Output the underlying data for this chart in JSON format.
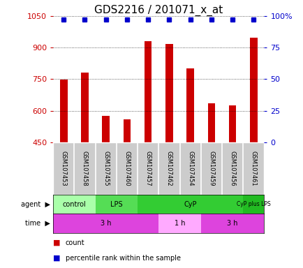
{
  "title": "GDS2216 / 201071_x_at",
  "samples": [
    "GSM107453",
    "GSM107458",
    "GSM107455",
    "GSM107460",
    "GSM107457",
    "GSM107462",
    "GSM107454",
    "GSM107459",
    "GSM107456",
    "GSM107461"
  ],
  "counts": [
    748,
    782,
    577,
    560,
    930,
    918,
    800,
    637,
    627,
    948
  ],
  "bar_color": "#cc0000",
  "dot_color": "#0000cc",
  "ymin": 450,
  "ymax": 1050,
  "yticks": [
    450,
    600,
    750,
    900,
    1050
  ],
  "y2ticks": [
    0,
    25,
    50,
    75,
    100
  ],
  "y2labels": [
    "0",
    "25",
    "50",
    "75",
    "100%"
  ],
  "agent_groups": [
    {
      "label": "control",
      "start": 0,
      "end": 2,
      "color": "#aaffaa"
    },
    {
      "label": "LPS",
      "start": 2,
      "end": 4,
      "color": "#55dd55"
    },
    {
      "label": "CyP",
      "start": 4,
      "end": 9,
      "color": "#33cc33"
    },
    {
      "label": "CyP plus LPS",
      "start": 9,
      "end": 10,
      "color": "#22bb22"
    }
  ],
  "time_groups": [
    {
      "label": "3 h",
      "start": 0,
      "end": 5,
      "color": "#dd44dd"
    },
    {
      "label": "1 h",
      "start": 5,
      "end": 7,
      "color": "#ffaaff"
    },
    {
      "label": "3 h",
      "start": 7,
      "end": 10,
      "color": "#dd44dd"
    }
  ],
  "title_fontsize": 11,
  "tick_fontsize": 8,
  "label_fontsize": 7,
  "sample_fontsize": 6
}
